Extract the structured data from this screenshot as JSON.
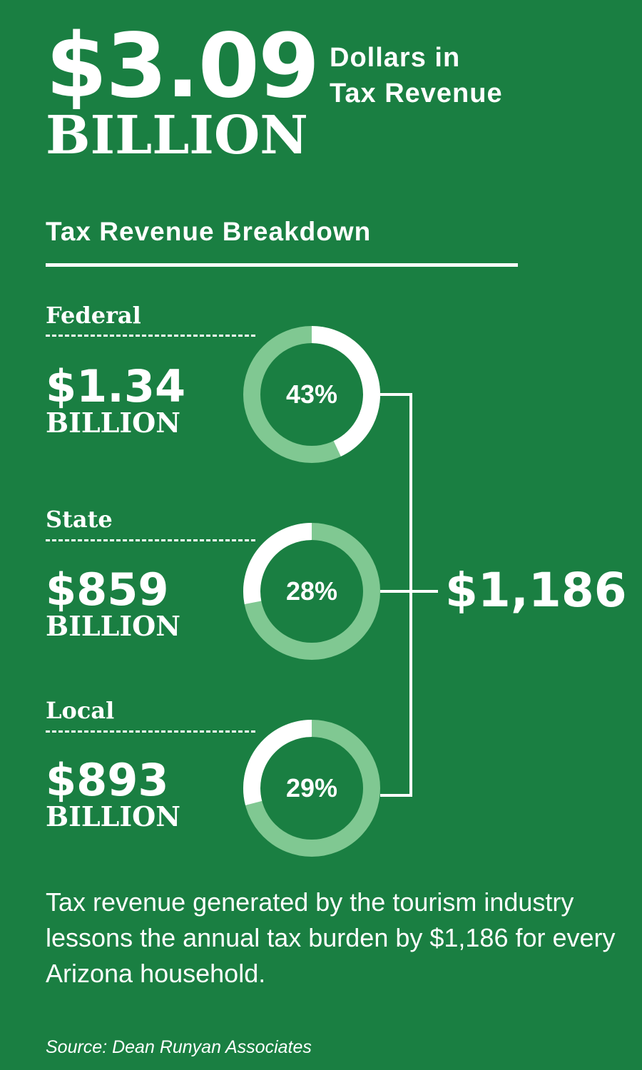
{
  "headline": {
    "amount": "$3.09",
    "unit": "BILLION",
    "caption_line1": "Dollars in",
    "caption_line2": "Tax Revenue"
  },
  "breakdown_title": "Tax Revenue Breakdown",
  "colors": {
    "background": "#1a7f42",
    "ring_track": "#80c892",
    "ring_highlight": "#ffffff"
  },
  "chart_data": {
    "type": "donut",
    "title": "Tax Revenue Breakdown",
    "categories": [
      "Federal",
      "State",
      "Local"
    ],
    "series": [
      {
        "amounts": [
          "$1.34",
          "$859",
          "$893"
        ],
        "unit": "BILLION",
        "values": [
          43,
          28,
          29
        ],
        "labels": [
          "43%",
          "28%",
          "29%"
        ]
      }
    ],
    "total": "$1,186"
  },
  "footnote": "Tax revenue generated by the tourism industry lessons the annual tax burden by $1,186 for every Arizona household.",
  "source": "Source: Dean Runyan Associates"
}
